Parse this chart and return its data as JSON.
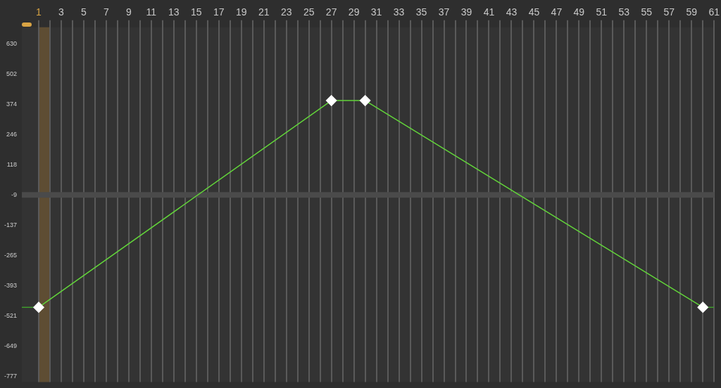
{
  "chart_data": {
    "type": "line",
    "xlim": [
      -0.5,
      61
    ],
    "xticks": [
      1,
      {
        "value": 2,
        "label": null
      },
      3,
      {
        "value": 4,
        "label": null
      },
      5,
      {
        "value": 6,
        "label": null
      },
      7,
      {
        "value": 8,
        "label": null
      },
      9,
      {
        "value": 10,
        "label": null
      },
      11,
      {
        "value": 12,
        "label": null
      },
      13,
      {
        "value": 14,
        "label": null
      },
      15,
      {
        "value": 16,
        "label": null
      },
      17,
      {
        "value": 18,
        "label": null
      },
      19,
      {
        "value": 20,
        "label": null
      },
      21,
      {
        "value": 22,
        "label": null
      },
      23,
      {
        "value": 24,
        "label": null
      },
      25,
      {
        "value": 26,
        "label": null
      },
      27,
      {
        "value": 28,
        "label": null
      },
      29,
      {
        "value": 30,
        "label": null
      },
      31,
      {
        "value": 32,
        "label": null
      },
      33,
      {
        "value": 34,
        "label": null
      },
      35,
      {
        "value": 36,
        "label": null
      },
      37,
      {
        "value": 38,
        "label": null
      },
      39,
      {
        "value": 40,
        "label": null
      },
      41,
      {
        "value": 42,
        "label": null
      },
      43,
      {
        "value": 44,
        "label": null
      },
      45,
      {
        "value": 46,
        "label": null
      },
      47,
      {
        "value": 48,
        "label": null
      },
      49,
      {
        "value": 50,
        "label": null
      },
      51,
      {
        "value": 52,
        "label": null
      },
      53,
      {
        "value": 54,
        "label": null
      },
      55,
      {
        "value": 56,
        "label": null
      },
      57,
      {
        "value": 58,
        "label": null
      },
      59,
      {
        "value": 60,
        "label": null
      },
      61
    ],
    "ylim": [
      -800,
      700
    ],
    "yticks": [
      630,
      502,
      374,
      246,
      118,
      -9,
      -137,
      -265,
      -393,
      -521,
      -649,
      -777
    ],
    "grid": "x",
    "legend": false,
    "bands": [
      {
        "axis": "x",
        "from": 1,
        "to": 2,
        "color": "#5e4d33"
      }
    ],
    "ref_lines": [
      {
        "axis": "y",
        "value": -9,
        "color": "#4a4a4a"
      }
    ],
    "series": [
      {
        "color": "#62d43a",
        "marker": "diamond",
        "x": [
          1,
          27,
          30,
          60
        ],
        "values": [
          -484,
          390,
          390,
          -484
        ]
      },
      {
        "color": "#3f9a2c",
        "marker": "none",
        "x": [
          -0.5,
          1,
          30.5,
          60,
          61
        ],
        "values": [
          -484,
          -484,
          null,
          -484,
          -484
        ]
      }
    ]
  }
}
